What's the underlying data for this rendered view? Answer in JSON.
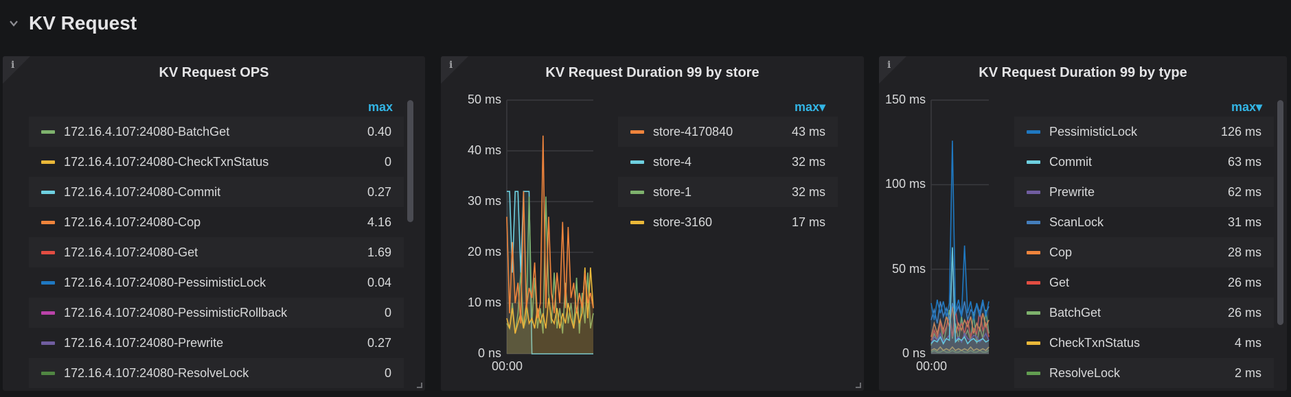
{
  "row": {
    "title": "KV Request"
  },
  "panels": [
    {
      "title": "KV Request OPS",
      "legend_header": "max",
      "legend": [
        {
          "name": "172.16.4.107:24080-BatchGet",
          "value": "0.40",
          "color": "#7eb26d"
        },
        {
          "name": "172.16.4.107:24080-CheckTxnStatus",
          "value": "0",
          "color": "#eab839"
        },
        {
          "name": "172.16.4.107:24080-Commit",
          "value": "0.27",
          "color": "#6ed0e0"
        },
        {
          "name": "172.16.4.107:24080-Cop",
          "value": "4.16",
          "color": "#ef843c"
        },
        {
          "name": "172.16.4.107:24080-Get",
          "value": "1.69",
          "color": "#e24d42"
        },
        {
          "name": "172.16.4.107:24080-PessimisticLock",
          "value": "0.04",
          "color": "#1f78c1"
        },
        {
          "name": "172.16.4.107:24080-PessimisticRollback",
          "value": "0",
          "color": "#ba43a9"
        },
        {
          "name": "172.16.4.107:24080-Prewrite",
          "value": "0.27",
          "color": "#705da0"
        },
        {
          "name": "172.16.4.107:24080-ResolveLock",
          "value": "0",
          "color": "#508642"
        }
      ]
    },
    {
      "title": "KV Request Duration 99 by store",
      "legend_header": "max▾",
      "legend": [
        {
          "name": "store-4170840",
          "value": "43 ms",
          "color": "#ef843c"
        },
        {
          "name": "store-4",
          "value": "32 ms",
          "color": "#6ed0e0"
        },
        {
          "name": "store-1",
          "value": "32 ms",
          "color": "#7eb26d"
        },
        {
          "name": "store-3160",
          "value": "17 ms",
          "color": "#eab839"
        }
      ]
    },
    {
      "title": "KV Request Duration 99 by type",
      "legend_header": "max▾",
      "legend": [
        {
          "name": "PessimisticLock",
          "value": "126 ms",
          "color": "#1f78c1"
        },
        {
          "name": "Commit",
          "value": "63 ms",
          "color": "#6ed0e0"
        },
        {
          "name": "Prewrite",
          "value": "62 ms",
          "color": "#705da0"
        },
        {
          "name": "ScanLock",
          "value": "31 ms",
          "color": "#447ebc"
        },
        {
          "name": "Cop",
          "value": "28 ms",
          "color": "#ef843c"
        },
        {
          "name": "Get",
          "value": "26 ms",
          "color": "#e24d42"
        },
        {
          "name": "BatchGet",
          "value": "26 ms",
          "color": "#7eb26d"
        },
        {
          "name": "CheckTxnStatus",
          "value": "4 ms",
          "color": "#eab839"
        },
        {
          "name": "ResolveLock",
          "value": "2 ms",
          "color": "#629e51"
        }
      ]
    }
  ],
  "chart_data": [
    {
      "type": "line",
      "title": "KV Request Duration 99 by store",
      "unit": "ms",
      "ylim": [
        0,
        50
      ],
      "yticks": [
        "0 ns",
        "10 ms",
        "20 ms",
        "30 ms",
        "40 ms",
        "50 ms"
      ],
      "ytick_values": [
        0,
        10,
        20,
        30,
        40,
        50
      ],
      "xticks": [
        "00:00"
      ],
      "series": [
        {
          "name": "store-4",
          "color": "#6ed0e0",
          "values": [
            32,
            32,
            16,
            32,
            32,
            16,
            32,
            32,
            32,
            0,
            0,
            0,
            0,
            0,
            0,
            0,
            0,
            0,
            0,
            0,
            0,
            0,
            0,
            0,
            0,
            0,
            0,
            0,
            0,
            0,
            0,
            0
          ]
        },
        {
          "name": "store-1",
          "color": "#7eb26d",
          "values": [
            6,
            5,
            10,
            4,
            8,
            16,
            5,
            7,
            31,
            6,
            15,
            5,
            9,
            4,
            31,
            12,
            6,
            16,
            5,
            9,
            4,
            14,
            6,
            10,
            5,
            15,
            4,
            12,
            6,
            16,
            5,
            8
          ]
        },
        {
          "name": "store-3160",
          "color": "#eab839",
          "values": [
            7,
            5,
            9,
            4,
            6,
            8,
            5,
            10,
            6,
            7,
            5,
            9,
            6,
            8,
            5,
            11,
            7,
            6,
            9,
            5,
            8,
            6,
            10,
            7,
            5,
            9,
            6,
            8,
            17,
            7,
            17,
            9
          ]
        },
        {
          "name": "store-4170840",
          "color": "#ef843c",
          "values": [
            27,
            8,
            22,
            10,
            14,
            6,
            32,
            9,
            13,
            11,
            18,
            7,
            10,
            43,
            9,
            27,
            12,
            8,
            16,
            10,
            26,
            9,
            25,
            11,
            14,
            8,
            12,
            9,
            16,
            10,
            12,
            9
          ]
        }
      ]
    },
    {
      "type": "line",
      "title": "KV Request Duration 99 by type",
      "unit": "ms",
      "ylim": [
        0,
        150
      ],
      "yticks": [
        "0 ns",
        "50 ms",
        "100 ms",
        "150 ms"
      ],
      "ytick_values": [
        0,
        50,
        100,
        150
      ],
      "xticks": [
        "00:00"
      ],
      "series": [
        {
          "name": "ResolveLock",
          "color": "#629e51",
          "values": [
            1,
            2,
            1,
            1,
            2,
            1,
            1,
            2,
            1,
            1,
            2,
            1,
            1,
            2,
            1,
            1,
            2,
            1,
            1,
            2
          ]
        },
        {
          "name": "CheckTxnStatus",
          "color": "#eab839",
          "values": [
            2,
            3,
            2,
            4,
            2,
            3,
            2,
            4,
            2,
            3,
            2,
            3,
            2,
            4,
            2,
            3,
            2,
            3,
            2,
            4
          ]
        },
        {
          "name": "BatchGet",
          "color": "#7eb26d",
          "values": [
            5,
            12,
            8,
            20,
            6,
            15,
            26,
            9,
            18,
            7,
            22,
            10,
            14,
            8,
            24,
            6,
            16,
            9,
            26,
            12
          ]
        },
        {
          "name": "Get",
          "color": "#e24d42",
          "values": [
            8,
            14,
            10,
            18,
            12,
            16,
            22,
            10,
            26,
            14,
            18,
            12,
            20,
            10,
            15,
            12,
            26,
            14,
            18,
            10
          ]
        },
        {
          "name": "Cop",
          "color": "#ef843c",
          "values": [
            10,
            18,
            12,
            20,
            14,
            22,
            16,
            28,
            12,
            18,
            14,
            20,
            16,
            22,
            12,
            18,
            14,
            24,
            16,
            20
          ]
        },
        {
          "name": "ScanLock",
          "color": "#447ebc",
          "values": [
            20,
            26,
            18,
            31,
            22,
            27,
            20,
            30,
            24,
            28,
            22,
            31,
            20,
            26,
            24,
            29,
            22,
            30,
            24,
            28
          ]
        },
        {
          "name": "Prewrite",
          "color": "#705da0",
          "values": [
            6,
            10,
            8,
            12,
            7,
            9,
            11,
            62,
            8,
            10,
            7,
            12,
            9,
            8,
            11,
            10,
            7,
            9,
            12,
            8
          ]
        },
        {
          "name": "Commit",
          "color": "#6ed0e0",
          "values": [
            6,
            8,
            7,
            10,
            6,
            9,
            8,
            63,
            7,
            9,
            8,
            10,
            6,
            8,
            9,
            7,
            8,
            9,
            7,
            8
          ]
        },
        {
          "name": "PessimisticLock",
          "color": "#1f78c1",
          "values": [
            30,
            20,
            32,
            24,
            31,
            22,
            30,
            126,
            25,
            32,
            22,
            64,
            24,
            31,
            20,
            30,
            24,
            32,
            22,
            31
          ]
        }
      ]
    }
  ]
}
